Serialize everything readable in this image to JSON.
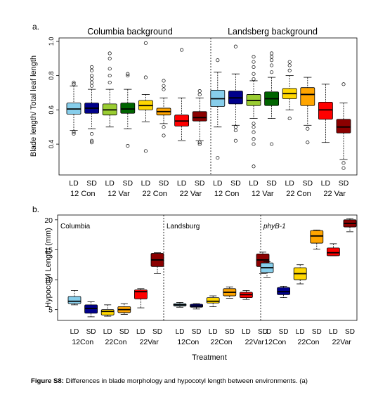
{
  "figure_caption": {
    "label": "Figure S8:",
    "text": "Differences in blade morphology and hypocotyl length between environments. (a)"
  },
  "chart_data": [
    {
      "panel_label": "a.",
      "type": "box",
      "ylabel": "Blade length/ Total leaf length",
      "ylim": [
        0.22,
        1.02
      ],
      "yticks": [
        0.4,
        0.6,
        0.8,
        1.0
      ],
      "yticklabels": [
        "0.4",
        "0.6",
        "0.8",
        "1.0"
      ],
      "grid": false,
      "groups": [
        {
          "title": "Columbia background",
          "categories": [
            "LD",
            "SD",
            "LD",
            "SD",
            "LD",
            "SD",
            "LD",
            "SD"
          ],
          "group_labels": [
            "12 Con",
            "12 Var",
            "22 Con",
            "22 Var"
          ]
        },
        {
          "title": "Landsberg background",
          "categories": [
            "LD",
            "SD",
            "LD",
            "SD",
            "LD",
            "SD",
            "LD",
            "SD"
          ],
          "group_labels": [
            "12 Con",
            "12 Var",
            "22 Con",
            "22 Var"
          ]
        }
      ],
      "boxes": [
        {
          "color": "#87CEEB",
          "q1": 0.575,
          "median": 0.605,
          "q3": 0.64,
          "whisker_low": 0.48,
          "whisker_high": 0.74,
          "outliers": [
            0.46,
            0.47,
            0.75,
            0.76
          ]
        },
        {
          "color": "#00008B",
          "q1": 0.58,
          "median": 0.61,
          "q3": 0.64,
          "whisker_low": 0.49,
          "whisker_high": 0.72,
          "outliers": [
            0.41,
            0.42,
            0.46,
            0.74,
            0.76,
            0.78,
            0.8,
            0.83,
            0.85
          ]
        },
        {
          "color": "#9ACD32",
          "q1": 0.57,
          "median": 0.6,
          "q3": 0.635,
          "whisker_low": 0.5,
          "whisker_high": 0.72,
          "outliers": [
            0.76,
            0.8,
            0.84,
            0.9,
            0.93
          ]
        },
        {
          "color": "#006400",
          "q1": 0.58,
          "median": 0.605,
          "q3": 0.64,
          "whisker_low": 0.49,
          "whisker_high": 0.72,
          "outliers": [
            0.39,
            0.8,
            0.81
          ]
        },
        {
          "color": "#FFD700",
          "q1": 0.6,
          "median": 0.625,
          "q3": 0.655,
          "whisker_low": 0.53,
          "whisker_high": 0.69,
          "outliers": [
            0.36,
            0.79,
            0.99
          ]
        },
        {
          "color": "#FFA500",
          "q1": 0.57,
          "median": 0.59,
          "q3": 0.61,
          "whisker_low": 0.52,
          "whisker_high": 0.67,
          "outliers": [
            0.45,
            0.5,
            0.72,
            0.74,
            0.77
          ]
        },
        {
          "color": "#FF0000",
          "q1": 0.505,
          "median": 0.535,
          "q3": 0.57,
          "whisker_low": 0.42,
          "whisker_high": 0.67,
          "outliers": [
            0.95
          ]
        },
        {
          "color": "#8B0000",
          "q1": 0.535,
          "median": 0.555,
          "q3": 0.59,
          "whisker_low": 0.42,
          "whisker_high": 0.67,
          "outliers": [
            0.4,
            0.41,
            0.69,
            0.71
          ]
        },
        {
          "color": "#87CEEB",
          "q1": 0.62,
          "median": 0.665,
          "q3": 0.715,
          "whisker_low": 0.5,
          "whisker_high": 0.82,
          "outliers": [
            0.32,
            0.89
          ]
        },
        {
          "color": "#00008B",
          "q1": 0.635,
          "median": 0.67,
          "q3": 0.71,
          "whisker_low": 0.51,
          "whisker_high": 0.81,
          "outliers": [
            0.42,
            0.48,
            0.5,
            0.97
          ]
        },
        {
          "color": "#9ACD32",
          "q1": 0.625,
          "median": 0.655,
          "q3": 0.69,
          "whisker_low": 0.55,
          "whisker_high": 0.77,
          "outliers": [
            0.27,
            0.4,
            0.43,
            0.47,
            0.5,
            0.52,
            0.78,
            0.81,
            0.85,
            0.88,
            0.91
          ]
        },
        {
          "color": "#006400",
          "q1": 0.625,
          "median": 0.665,
          "q3": 0.705,
          "whisker_low": 0.55,
          "whisker_high": 0.79,
          "outliers": [
            0.4,
            0.82,
            0.86,
            0.89,
            0.91,
            0.93
          ]
        },
        {
          "color": "#FFD700",
          "q1": 0.665,
          "median": 0.695,
          "q3": 0.725,
          "whisker_low": 0.6,
          "whisker_high": 0.8,
          "outliers": [
            0.55,
            0.83,
            0.86,
            0.88
          ]
        },
        {
          "color": "#FFA500",
          "q1": 0.625,
          "median": 0.69,
          "q3": 0.73,
          "whisker_low": 0.51,
          "whisker_high": 0.79,
          "outliers": [
            0.41,
            0.49
          ]
        },
        {
          "color": "#FF0000",
          "q1": 0.545,
          "median": 0.6,
          "q3": 0.645,
          "whisker_low": 0.41,
          "whisker_high": 0.75,
          "outliers": []
        },
        {
          "color": "#8B0000",
          "q1": 0.465,
          "median": 0.5,
          "q3": 0.545,
          "whisker_low": 0.31,
          "whisker_high": 0.64,
          "outliers": [
            0.26,
            0.29,
            0.75
          ]
        }
      ]
    },
    {
      "panel_label": "b.",
      "type": "box",
      "ylabel": "Hypocotyl Length (mm)",
      "xlabel": "Treatment",
      "ylim": [
        3.2,
        20.8
      ],
      "yticks": [
        5,
        10,
        15,
        20
      ],
      "yticklabels": [
        "5",
        "10",
        "15",
        "20"
      ],
      "grid": false,
      "groups": [
        {
          "title": "Columbia",
          "italic": false,
          "categories": [
            "LD",
            "SD",
            "LD",
            "SD",
            "LD",
            "SD"
          ],
          "group_labels": [
            "12Con",
            "22Con",
            "22Var"
          ]
        },
        {
          "title": "Landsburg",
          "italic": false,
          "categories": [
            "LD",
            "SD",
            "LD",
            "SD",
            "LD",
            "SD"
          ],
          "group_labels": [
            "12Con",
            "22Con",
            "22Var"
          ]
        },
        {
          "title": "phyB-1",
          "italic": true,
          "categories": [
            "LD",
            "SD",
            "LD",
            "SD",
            "LD",
            "SD"
          ],
          "group_labels": [
            "12Con",
            "22Con",
            "22Var"
          ]
        }
      ],
      "boxes": [
        {
          "color": "#87CEEB",
          "q1": 6.0,
          "median": 6.4,
          "q3": 7.2,
          "whisker_low": 5.8,
          "whisker_high": 8.2
        },
        {
          "color": "#00008B",
          "q1": 4.4,
          "median": 5.2,
          "q3": 5.8,
          "whisker_low": 3.8,
          "whisker_high": 6.3
        },
        {
          "color": "#FFD700",
          "q1": 4.1,
          "median": 4.7,
          "q3": 5.0,
          "whisker_low": 3.9,
          "whisker_high": 5.8
        },
        {
          "color": "#FFA500",
          "q1": 4.5,
          "median": 5.0,
          "q3": 5.5,
          "whisker_low": 4.2,
          "whisker_high": 6.0
        },
        {
          "color": "#FF0000",
          "q1": 6.8,
          "median": 8.0,
          "q3": 8.3,
          "whisker_low": 5.3,
          "whisker_high": 8.5
        },
        {
          "color": "#8B0000",
          "q1": 12.2,
          "median": 13.3,
          "q3": 14.4,
          "whisker_low": 11.0,
          "whisker_high": 14.5
        },
        {
          "color": "#87CEEB",
          "q1": 5.6,
          "median": 5.8,
          "q3": 6.0,
          "whisker_low": 5.4,
          "whisker_high": 6.2
        },
        {
          "color": "#00008B",
          "q1": 5.4,
          "median": 5.6,
          "q3": 5.9,
          "whisker_low": 5.1,
          "whisker_high": 6.0
        },
        {
          "color": "#FFD700",
          "q1": 6.1,
          "median": 6.4,
          "q3": 7.0,
          "whisker_low": 5.5,
          "whisker_high": 7.3
        },
        {
          "color": "#FFA500",
          "q1": 7.3,
          "median": 7.9,
          "q3": 8.5,
          "whisker_low": 6.9,
          "whisker_high": 8.8
        },
        {
          "color": "#FF0000",
          "q1": 7.0,
          "median": 7.5,
          "q3": 7.9,
          "whisker_low": 6.7,
          "whisker_high": 8.2
        },
        {
          "color": "#8B0000",
          "q1": 12.2,
          "median": 13.3,
          "q3": 14.3,
          "whisker_low": 11.0,
          "whisker_high": 14.6
        },
        {
          "color": "#87CEEB",
          "q1": 11.2,
          "median": 12.0,
          "q3": 12.8,
          "whisker_low": 10.4,
          "whisker_high": 13.0
        },
        {
          "color": "#00008B",
          "q1": 7.5,
          "median": 8.0,
          "q3": 8.7,
          "whisker_low": 7.0,
          "whisker_high": 8.9
        },
        {
          "color": "#FFD700",
          "q1": 10.0,
          "median": 11.0,
          "q3": 12.0,
          "whisker_low": 9.3,
          "whisker_high": 12.5
        },
        {
          "color": "#FFA500",
          "q1": 16.1,
          "median": 17.3,
          "q3": 18.2,
          "whisker_low": 15.1,
          "whisker_high": 18.3
        },
        {
          "color": "#FF0000",
          "q1": 14.0,
          "median": 14.5,
          "q3": 15.3,
          "whisker_low": 14.0,
          "whisker_high": 16.0
        },
        {
          "color": "#8B0000",
          "q1": 18.8,
          "median": 19.4,
          "q3": 20.0,
          "whisker_low": 18.0,
          "whisker_high": 20.2
        }
      ]
    }
  ]
}
